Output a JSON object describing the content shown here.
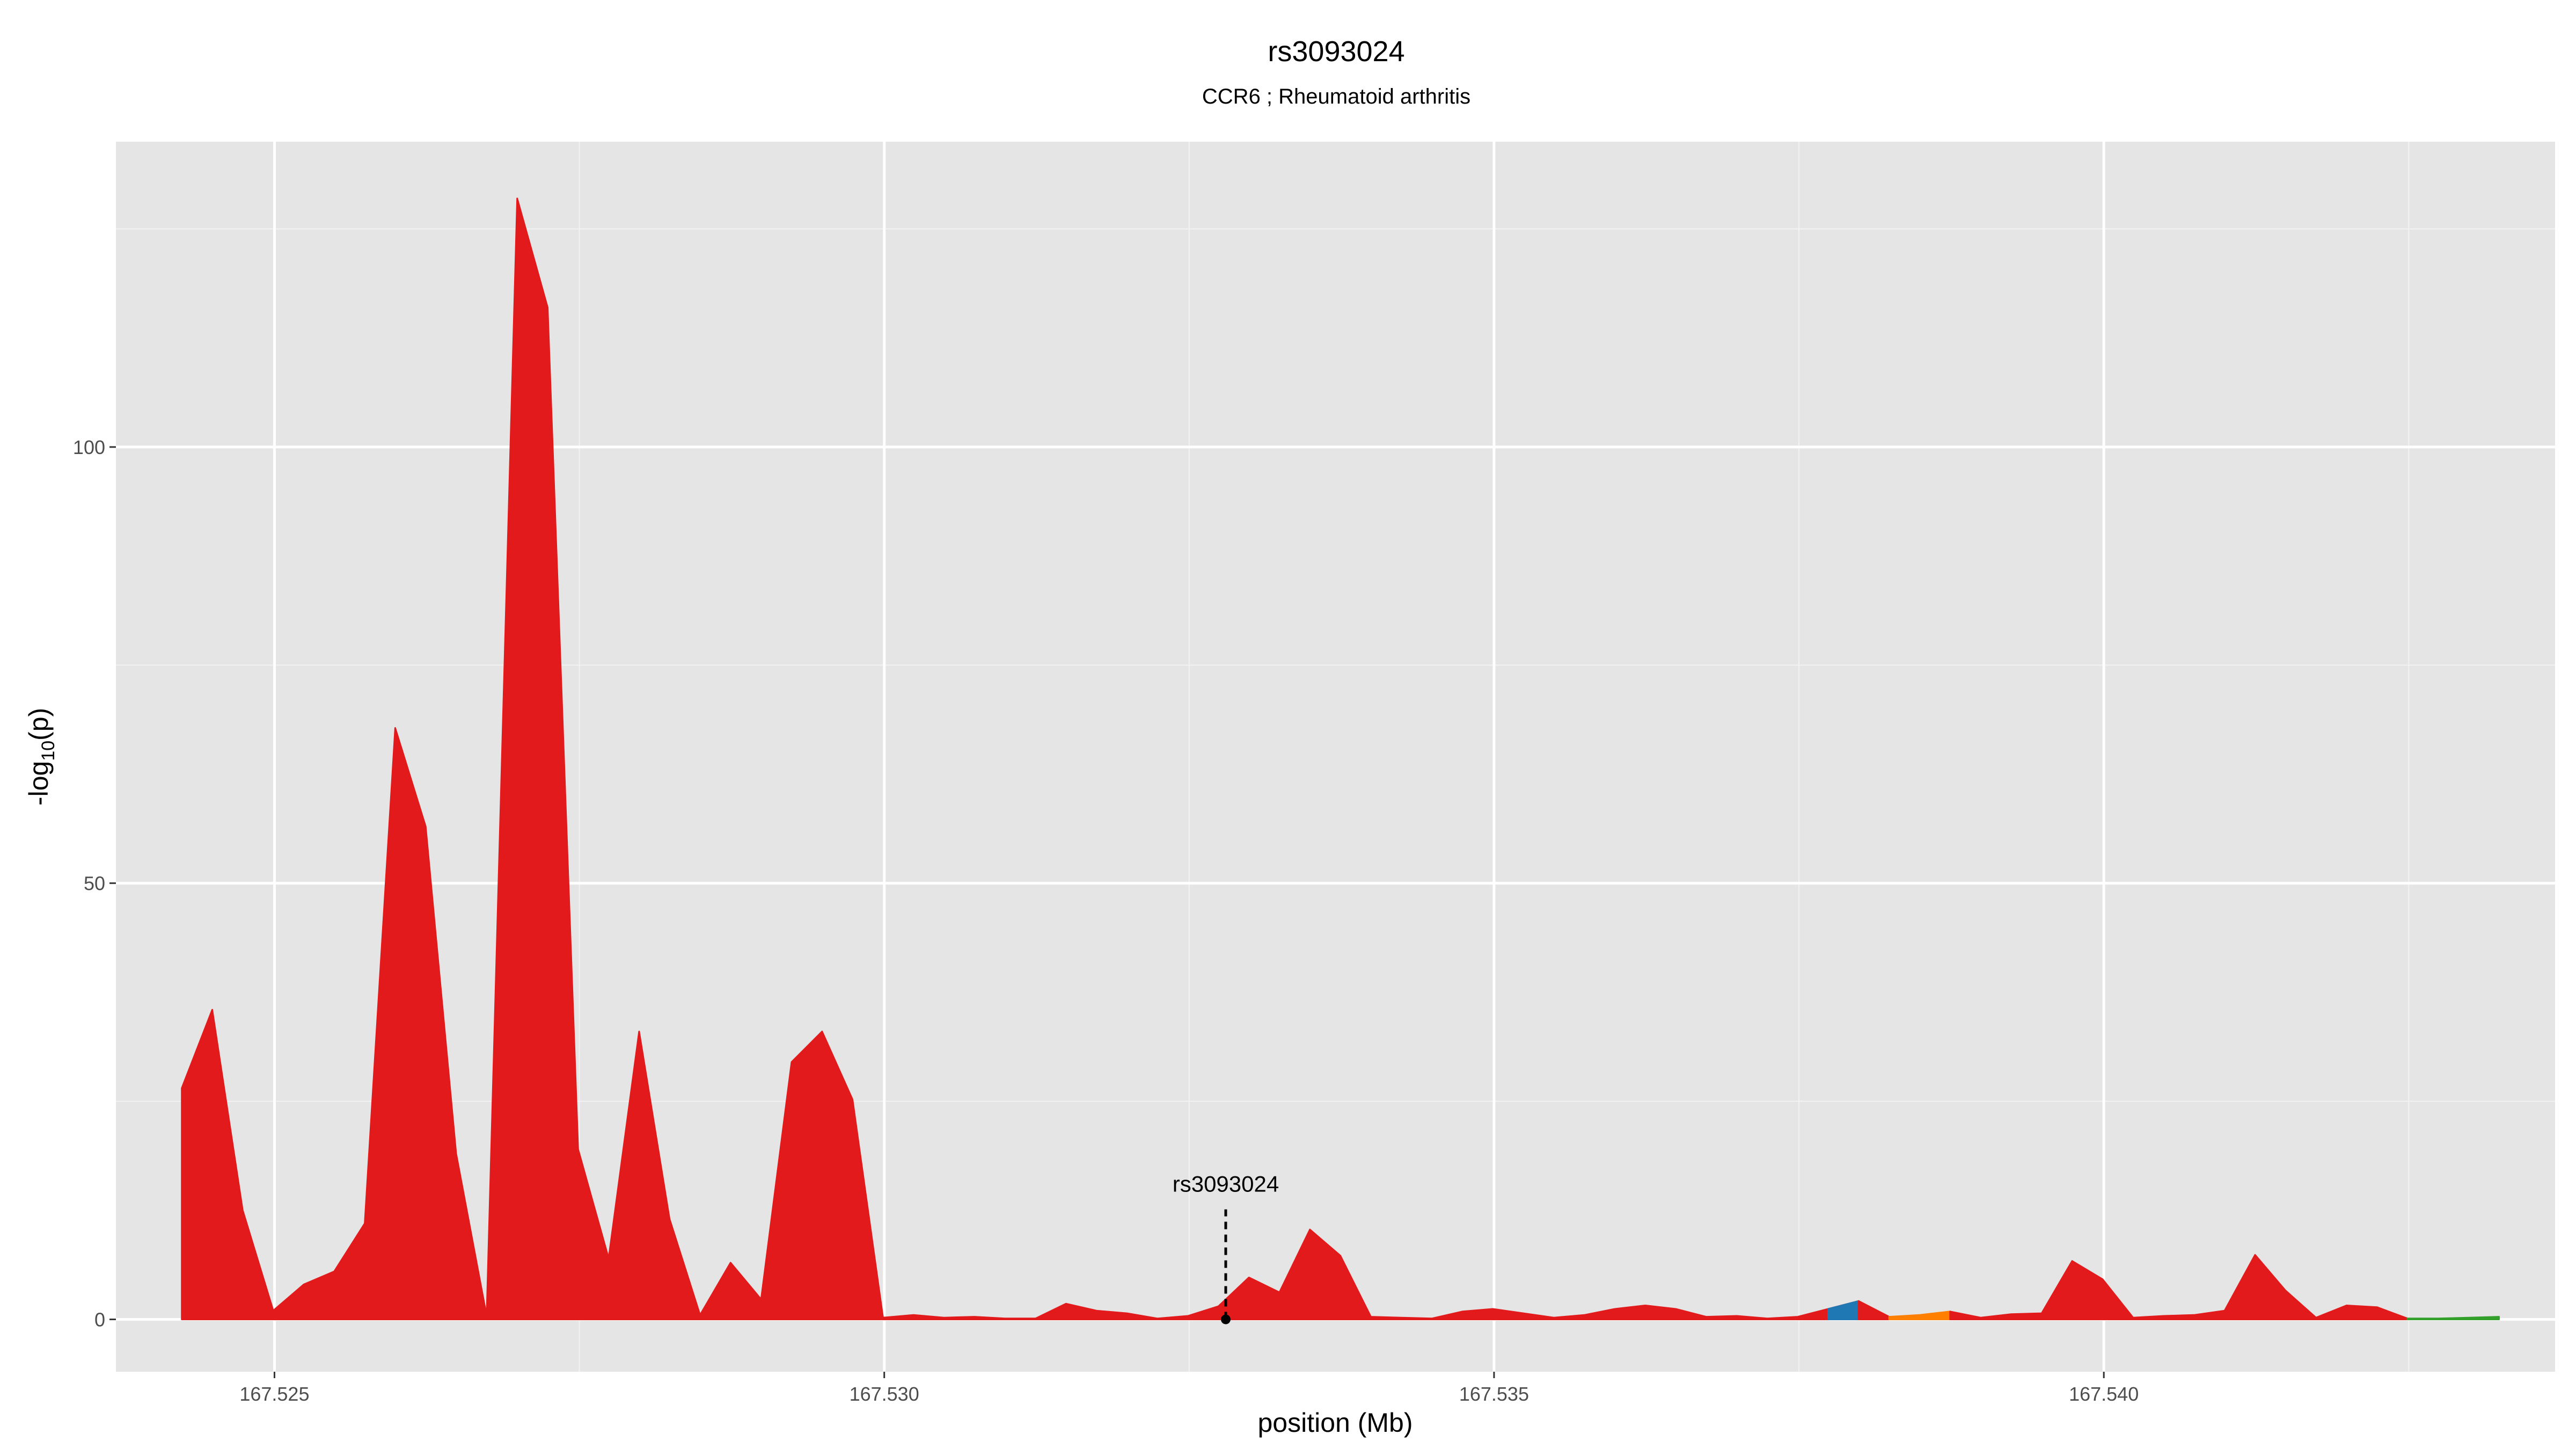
{
  "chart_data": {
    "type": "area",
    "title": "rs3093024",
    "subtitle": "CCR6 ; Rheumatoid arthritis",
    "xlabel": "position (Mb)",
    "ylabel": "-log10(p)",
    "ylabel_base": "-log",
    "ylabel_subscript": "10",
    "ylabel_suffix": "(p)",
    "xlim": [
      167.5237,
      167.5437
    ],
    "ylim": [
      -6,
      135
    ],
    "x_ticks": [
      167.525,
      167.53,
      167.535,
      167.54
    ],
    "x_tick_labels": [
      "167.525",
      "167.530",
      "167.535",
      "167.540"
    ],
    "y_ticks": [
      0,
      50,
      100
    ],
    "y_tick_labels": [
      "0",
      "50",
      "100"
    ],
    "grid": true,
    "legend": "none",
    "colors": {
      "panel_bg": "#e5e5e5",
      "grid": "#ffffff",
      "main_fill": "#e31a1c",
      "tick_label": "#4d4d4d"
    },
    "series": [
      {
        "color": "#e31a1c",
        "x": [
          167.52424,
          167.52449,
          167.52474,
          167.52499,
          167.52524,
          167.52549,
          167.52574,
          167.52599,
          167.52624,
          167.52649,
          167.52674,
          167.52699,
          167.52724,
          167.52749,
          167.52774,
          167.52799,
          167.52824,
          167.52849,
          167.52874,
          167.52899,
          167.52924,
          167.52949,
          167.52974,
          167.52999,
          167.53024,
          167.53049,
          167.53074,
          167.53099,
          167.53124,
          167.53149,
          167.53174,
          167.53199,
          167.53224,
          167.53249,
          167.53274,
          167.53299,
          167.53324,
          167.53349,
          167.53374,
          167.53399,
          167.53424,
          167.53449,
          167.53474,
          167.53499,
          167.53524,
          167.53549,
          167.53574,
          167.53599,
          167.53624,
          167.53649,
          167.53674,
          167.53699,
          167.53724,
          167.53749,
          167.53774,
          167.53799
        ],
        "y": [
          26.5,
          35.5,
          12.5,
          1,
          4,
          5.5,
          11,
          67.8,
          56.5,
          19,
          0.4,
          128.5,
          116,
          19.5,
          7,
          33,
          11.5,
          0.5,
          6.5,
          2.3,
          29.5,
          33,
          25.2,
          0.2,
          0.5,
          0.2,
          0.3,
          0.1,
          0.1,
          1.8,
          1,
          0.7,
          0.1,
          0.4,
          1.5,
          4.8,
          3.1,
          10.3,
          7.3,
          0.3,
          0.2,
          0.1,
          0.9,
          1.2,
          0.7,
          0.2,
          0.5,
          1.2,
          1.6,
          1.2,
          0.3,
          0.4,
          0.1,
          0.3,
          1.2,
          2.1
        ]
      },
      {
        "color": "#1f78b4",
        "x": [
          167.53774,
          167.53799
        ],
        "y": [
          1.2,
          2.1
        ]
      },
      {
        "color": "#e31a1c",
        "x": [
          167.53799,
          167.53824
        ],
        "y": [
          2.1,
          0.3
        ]
      },
      {
        "color": "#ff7f00",
        "x": [
          167.53824,
          167.53849,
          167.53874
        ],
        "y": [
          0.3,
          0.5,
          0.9
        ]
      },
      {
        "color": "#e31a1c",
        "x": [
          167.53874,
          167.53899,
          167.53924,
          167.53949,
          167.53974,
          167.53999,
          167.54024,
          167.54049,
          167.54074,
          167.54099,
          167.54124,
          167.54149,
          167.54174,
          167.54199,
          167.54224,
          167.54249
        ],
        "y": [
          0.9,
          0.2,
          0.6,
          0.7,
          6.7,
          4.6,
          0.2,
          0.4,
          0.5,
          1,
          7.4,
          3.3,
          0.2,
          1.6,
          1.4,
          0.1
        ]
      },
      {
        "color": "#33a02c",
        "x": [
          167.54249,
          167.54274,
          167.54299,
          167.54324
        ],
        "y": [
          0.1,
          0.1,
          0.2,
          0.3
        ]
      }
    ],
    "annotations": [
      {
        "label": "rs3093024",
        "x": 167.5328,
        "y": 0
      }
    ]
  }
}
